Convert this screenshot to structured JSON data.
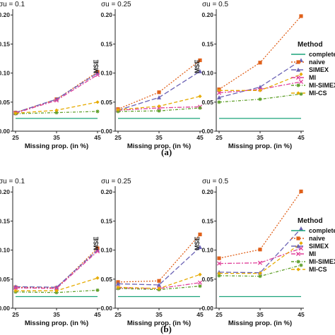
{
  "figure": {
    "captions": [
      "(a)",
      "(b)"
    ]
  },
  "legend": {
    "title": "Method",
    "labels": [
      "complete",
      "naive",
      "SIMEX",
      "MI",
      "MI-SIMEX",
      "MI-CS"
    ]
  },
  "chart_data": [
    {
      "type": "line",
      "panel": "a",
      "title": "σu = 0.1",
      "xlabel": "Missing prop. (in %)",
      "ylabel": "",
      "x": [
        25,
        35,
        45
      ],
      "ylim": [
        0,
        0.21
      ],
      "yticks": [
        "0.00",
        "0.05",
        "0.10",
        "0.15",
        "0.20"
      ],
      "series": [
        {
          "name": "complete",
          "values": [
            0.022,
            0.022,
            0.022
          ]
        },
        {
          "name": "naive",
          "values": [
            0.032,
            0.055,
            0.102
          ]
        },
        {
          "name": "SIMEX",
          "values": [
            0.032,
            0.055,
            0.1
          ]
        },
        {
          "name": "MI",
          "values": [
            0.031,
            0.053,
            0.097
          ]
        },
        {
          "name": "MI-SIMEX",
          "values": [
            0.03,
            0.032,
            0.034
          ]
        },
        {
          "name": "MI-CS",
          "values": [
            0.031,
            0.036,
            0.05
          ]
        }
      ]
    },
    {
      "type": "line",
      "panel": "a",
      "title": "σu = 0.25",
      "xlabel": "Missing prop. (in %)",
      "ylabel": "MSE",
      "x": [
        25,
        35,
        45
      ],
      "ylim": [
        0,
        0.21
      ],
      "yticks": [
        "0.00",
        "0.05",
        "0.10",
        "0.15",
        "0.20"
      ],
      "series": [
        {
          "name": "complete",
          "values": [
            0.022,
            0.022,
            0.022
          ]
        },
        {
          "name": "naive",
          "values": [
            0.038,
            0.067,
            0.122
          ]
        },
        {
          "name": "SIMEX",
          "values": [
            0.036,
            0.058,
            0.103
          ]
        },
        {
          "name": "MI",
          "values": [
            0.036,
            0.04,
            0.042
          ]
        },
        {
          "name": "MI-SIMEX",
          "values": [
            0.034,
            0.035,
            0.04
          ]
        },
        {
          "name": "MI-CS",
          "values": [
            0.037,
            0.043,
            0.06
          ]
        }
      ]
    },
    {
      "type": "line",
      "panel": "a",
      "title": "σu = 0.5",
      "xlabel": "Missing prop. (in %)",
      "ylabel": "MSE",
      "x": [
        25,
        35,
        45
      ],
      "ylim": [
        0,
        0.21
      ],
      "yticks": [
        "0.00",
        "0.05",
        "0.10",
        "0.15",
        "0.20"
      ],
      "series": [
        {
          "name": "complete",
          "values": [
            0.022,
            0.022,
            0.022
          ]
        },
        {
          "name": "naive",
          "values": [
            0.072,
            0.118,
            0.198
          ]
        },
        {
          "name": "SIMEX",
          "values": [
            0.058,
            0.076,
            0.122
          ]
        },
        {
          "name": "MI",
          "values": [
            0.066,
            0.072,
            0.085
          ]
        },
        {
          "name": "MI-SIMEX",
          "values": [
            0.05,
            0.055,
            0.064
          ]
        },
        {
          "name": "MI-CS",
          "values": [
            0.07,
            0.07,
            0.098
          ]
        }
      ]
    },
    {
      "type": "line",
      "panel": "b",
      "title": "σu = 0.1",
      "xlabel": "Missing prop. (in %)",
      "ylabel": "",
      "x": [
        25,
        35,
        45
      ],
      "ylim": [
        0,
        0.21
      ],
      "yticks": [
        "0.00",
        "0.05",
        "0.10",
        "0.15",
        "0.20"
      ],
      "series": [
        {
          "name": "complete",
          "values": [
            0.02,
            0.02,
            0.02
          ]
        },
        {
          "name": "naive",
          "values": [
            0.036,
            0.035,
            0.103
          ]
        },
        {
          "name": "SIMEX",
          "values": [
            0.037,
            0.036,
            0.1
          ]
        },
        {
          "name": "MI",
          "values": [
            0.035,
            0.034,
            0.098
          ]
        },
        {
          "name": "MI-SIMEX",
          "values": [
            0.028,
            0.027,
            0.031
          ]
        },
        {
          "name": "MI-CS",
          "values": [
            0.03,
            0.03,
            0.052
          ]
        }
      ]
    },
    {
      "type": "line",
      "panel": "b",
      "title": "σu = 0.25",
      "xlabel": "Missing prop. (in %)",
      "ylabel": "MSE",
      "x": [
        25,
        35,
        45
      ],
      "ylim": [
        0,
        0.21
      ],
      "yticks": [
        "0.00",
        "0.05",
        "0.10",
        "0.15",
        "0.20"
      ],
      "series": [
        {
          "name": "complete",
          "values": [
            0.02,
            0.02,
            0.02
          ]
        },
        {
          "name": "naive",
          "values": [
            0.045,
            0.047,
            0.127
          ]
        },
        {
          "name": "SIMEX",
          "values": [
            0.042,
            0.04,
            0.105
          ]
        },
        {
          "name": "MI",
          "values": [
            0.035,
            0.034,
            0.044
          ]
        },
        {
          "name": "MI-SIMEX",
          "values": [
            0.034,
            0.032,
            0.038
          ]
        },
        {
          "name": "MI-CS",
          "values": [
            0.036,
            0.034,
            0.058
          ]
        }
      ]
    },
    {
      "type": "line",
      "panel": "b",
      "title": "σu = 0.5",
      "xlabel": "Missing prop. (in %)",
      "ylabel": "MSE",
      "x": [
        25,
        35,
        45
      ],
      "ylim": [
        0,
        0.21
      ],
      "yticks": [
        "0.00",
        "0.05",
        "0.10",
        "0.15",
        "0.20"
      ],
      "series": [
        {
          "name": "complete",
          "values": [
            0.02,
            0.02,
            0.02
          ]
        },
        {
          "name": "naive",
          "values": [
            0.086,
            0.101,
            0.201
          ]
        },
        {
          "name": "SIMEX",
          "values": [
            0.062,
            0.061,
            0.137
          ]
        },
        {
          "name": "MI",
          "values": [
            0.077,
            0.078,
            0.103
          ]
        },
        {
          "name": "MI-SIMEX",
          "values": [
            0.056,
            0.055,
            0.074
          ]
        },
        {
          "name": "MI-CS",
          "values": [
            0.06,
            0.06,
            0.112
          ]
        }
      ]
    }
  ],
  "styles": {
    "complete": {
      "color": "#1aa37a",
      "dash": "",
      "marker": "line"
    },
    "naive": {
      "color": "#e0601a",
      "dash": "2,2",
      "marker": "square"
    },
    "SIMEX": {
      "color": "#6b63b5",
      "dash": "7,3",
      "marker": "triangle"
    },
    "MI": {
      "color": "#e0409a",
      "dash": "6,2,2,2",
      "marker": "cross"
    },
    "MI-SIMEX": {
      "color": "#5f9f2a",
      "dash": "4,2,1,2",
      "marker": "star"
    },
    "MI-CS": {
      "color": "#e6ab02",
      "dash": "5,3",
      "marker": "diamond"
    }
  }
}
